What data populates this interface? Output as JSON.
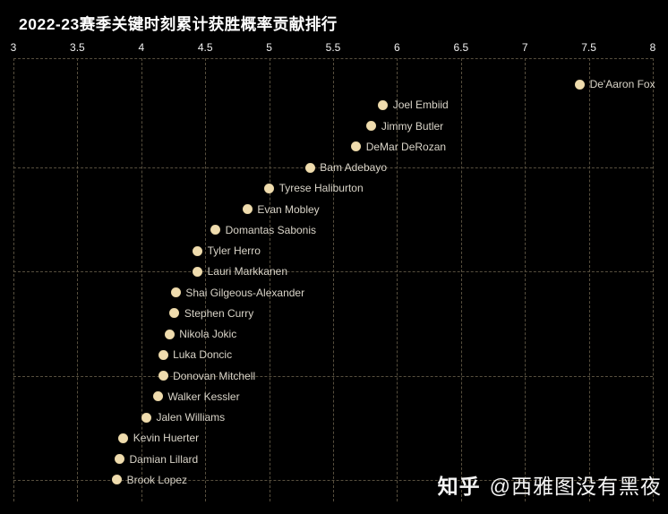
{
  "colors": {
    "background": "#000000",
    "dot": "#efdcae",
    "gridline": "#574f3e",
    "point_label": "#d9d4c8",
    "tick_label": "#f0f0f0",
    "title": "#ffffff",
    "watermark": "#f5f5f5"
  },
  "watermark": {
    "brand": "知乎",
    "account": "@西雅图没有黑夜"
  },
  "chart_data": {
    "type": "scatter",
    "title": "2022-23赛季关键时刻累计获胜概率贡献排行",
    "xlabel": "",
    "ylabel": "",
    "xlim": [
      3,
      8
    ],
    "x_ticks": [
      3,
      3.5,
      4,
      4.5,
      5,
      5.5,
      6,
      6.5,
      7,
      7.5,
      8
    ],
    "x_tick_labels": [
      "3",
      "3.5",
      "4",
      "4.5",
      "5",
      "5.5",
      "6",
      "6.5",
      "7",
      "7.5",
      "8"
    ],
    "tick_position": "top",
    "grid": "dashed",
    "h_grid_ranks": [
      5,
      10,
      15,
      20
    ],
    "legend": "none",
    "points": [
      {
        "rank": 1,
        "player": "De'Aaron Fox",
        "value": 7.43
      },
      {
        "rank": 2,
        "player": "Joel Embiid",
        "value": 5.89
      },
      {
        "rank": 3,
        "player": "Jimmy Butler",
        "value": 5.8
      },
      {
        "rank": 4,
        "player": "DeMar DeRozan",
        "value": 5.68
      },
      {
        "rank": 5,
        "player": "Bam Adebayo",
        "value": 5.32
      },
      {
        "rank": 6,
        "player": "Tyrese Haliburton",
        "value": 5.0
      },
      {
        "rank": 7,
        "player": "Evan Mobley",
        "value": 4.83
      },
      {
        "rank": 8,
        "player": "Domantas Sabonis",
        "value": 4.58
      },
      {
        "rank": 9,
        "player": "Tyler Herro",
        "value": 4.44
      },
      {
        "rank": 10,
        "player": "Lauri Markkanen",
        "value": 4.44
      },
      {
        "rank": 11,
        "player": "Shai Gilgeous-Alexander",
        "value": 4.27
      },
      {
        "rank": 12,
        "player": "Stephen Curry",
        "value": 4.26
      },
      {
        "rank": 13,
        "player": "Nikola Jokic",
        "value": 4.22
      },
      {
        "rank": 14,
        "player": "Luka Doncic",
        "value": 4.17
      },
      {
        "rank": 15,
        "player": "Donovan Mitchell",
        "value": 4.17
      },
      {
        "rank": 16,
        "player": "Walker Kessler",
        "value": 4.13
      },
      {
        "rank": 17,
        "player": "Jalen Williams",
        "value": 4.04
      },
      {
        "rank": 18,
        "player": "Kevin Huerter",
        "value": 3.86
      },
      {
        "rank": 19,
        "player": "Damian Lillard",
        "value": 3.83
      },
      {
        "rank": 20,
        "player": "Brook Lopez",
        "value": 3.81
      }
    ]
  }
}
